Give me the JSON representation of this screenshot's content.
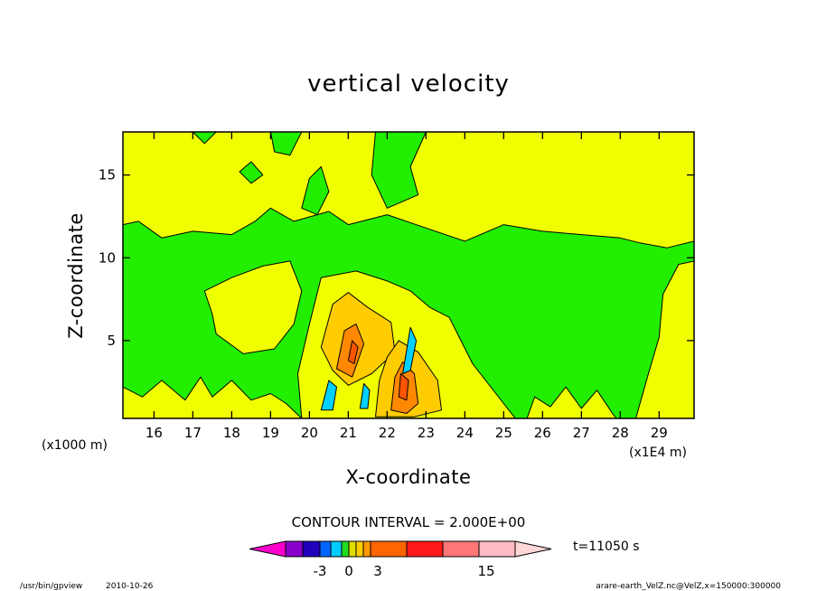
{
  "footer": {
    "program": "/usr/bin/gpview",
    "date": "2010-10-26",
    "source": "arare-earth_VelZ.nc@VelZ,x=150000:300000"
  },
  "colorbar": {
    "interval_label": "CONTOUR INTERVAL = 2.000E+00",
    "time_label": "t=11050 s",
    "tick_labels": [
      "-3",
      "0",
      "3",
      "15"
    ],
    "colors": [
      "#ff00cc",
      "#8800cc",
      "#2200bb",
      "#0066ff",
      "#00ccff",
      "#22dd22",
      "#dddd00",
      "#ffcc00",
      "#ff9900",
      "#ff6600",
      "#ff1a1a",
      "#ff7777",
      "#ffbbc5",
      "#ffd7d7"
    ]
  },
  "chart_data": {
    "type": "contour",
    "title": "vertical velocity",
    "xlabel": "X-coordinate",
    "ylabel": "Z-coordinate",
    "x_unit_label": "(x1E4 m)",
    "y_unit_label": "(x1000 m)",
    "xlim": [
      15.2,
      29.9
    ],
    "ylim": [
      0.3,
      17.6
    ],
    "x_ticks": [
      16,
      17,
      18,
      19,
      20,
      21,
      22,
      23,
      24,
      25,
      26,
      27,
      28,
      29
    ],
    "y_ticks": [
      5,
      10,
      15
    ],
    "contour_interval": 2.0,
    "time_s": 11050,
    "fill_colors": {
      "background": "#f0ff00",
      "green": "#22ee00",
      "yellow": "#f0ff00",
      "gold": "#ffcc00",
      "orange": "#ff8800",
      "cyan": "#00d0ff",
      "deep_orange": "#ff5500"
    },
    "regions": [
      {
        "color": "green",
        "points": [
          [
            15.2,
            0.3
          ],
          [
            15.2,
            12.0
          ],
          [
            15.6,
            12.2
          ],
          [
            16.2,
            11.2
          ],
          [
            17.0,
            11.6
          ],
          [
            18.0,
            11.4
          ],
          [
            18.6,
            12.2
          ],
          [
            19.0,
            13.0
          ],
          [
            19.6,
            12.2
          ],
          [
            20.5,
            12.8
          ],
          [
            21.0,
            12.0
          ],
          [
            22.0,
            12.6
          ],
          [
            23.0,
            11.8
          ],
          [
            24.0,
            11.0
          ],
          [
            25.0,
            12.0
          ],
          [
            26.0,
            11.6
          ],
          [
            27.0,
            11.4
          ],
          [
            28.0,
            11.2
          ],
          [
            28.5,
            10.9
          ],
          [
            29.2,
            10.6
          ],
          [
            29.9,
            11.0
          ],
          [
            29.9,
            0.3
          ]
        ]
      },
      {
        "color": "green",
        "points": [
          [
            19.8,
            13.0
          ],
          [
            20.2,
            12.6
          ],
          [
            20.5,
            14.0
          ],
          [
            20.3,
            15.5
          ],
          [
            20.0,
            14.8
          ]
        ]
      },
      {
        "color": "green",
        "points": [
          [
            21.7,
            17.6
          ],
          [
            21.6,
            15.0
          ],
          [
            22.0,
            13.0
          ],
          [
            22.8,
            13.8
          ],
          [
            22.6,
            15.5
          ],
          [
            23.0,
            17.6
          ]
        ]
      },
      {
        "color": "green",
        "points": [
          [
            19.0,
            17.6
          ],
          [
            19.1,
            16.4
          ],
          [
            19.5,
            16.2
          ],
          [
            19.8,
            17.6
          ]
        ]
      },
      {
        "color": "green",
        "points": [
          [
            18.2,
            15.2
          ],
          [
            18.5,
            14.5
          ],
          [
            18.8,
            15.0
          ],
          [
            18.5,
            15.8
          ]
        ]
      },
      {
        "color": "green",
        "points": [
          [
            17.0,
            17.6
          ],
          [
            17.3,
            16.9
          ],
          [
            17.6,
            17.6
          ]
        ]
      },
      {
        "color": "yellow",
        "points": [
          [
            15.2,
            0.3
          ],
          [
            15.2,
            2.2
          ],
          [
            15.7,
            1.6
          ],
          [
            16.2,
            2.6
          ],
          [
            16.8,
            1.4
          ],
          [
            17.2,
            2.8
          ],
          [
            17.5,
            1.6
          ],
          [
            18.0,
            2.6
          ],
          [
            18.5,
            1.4
          ],
          [
            19.0,
            1.8
          ],
          [
            19.4,
            1.2
          ],
          [
            19.8,
            0.3
          ]
        ]
      },
      {
        "color": "yellow",
        "points": [
          [
            17.3,
            8.0
          ],
          [
            18.0,
            8.8
          ],
          [
            18.8,
            9.5
          ],
          [
            19.5,
            9.8
          ],
          [
            19.8,
            8.0
          ],
          [
            19.6,
            6.0
          ],
          [
            19.1,
            4.5
          ],
          [
            18.3,
            4.2
          ],
          [
            17.6,
            5.4
          ],
          [
            17.5,
            6.6
          ]
        ]
      },
      {
        "color": "yellow",
        "points": [
          [
            19.8,
            0.3
          ],
          [
            19.7,
            3.0
          ],
          [
            20.0,
            6.0
          ],
          [
            20.3,
            8.8
          ],
          [
            21.2,
            9.2
          ],
          [
            22.0,
            8.6
          ],
          [
            22.6,
            8.0
          ],
          [
            23.1,
            7.0
          ],
          [
            23.6,
            6.4
          ],
          [
            24.2,
            3.6
          ],
          [
            24.8,
            1.8
          ],
          [
            25.3,
            0.3
          ]
        ]
      },
      {
        "color": "yellow",
        "points": [
          [
            25.6,
            0.3
          ],
          [
            25.8,
            1.6
          ],
          [
            26.2,
            1.0
          ],
          [
            26.6,
            2.2
          ],
          [
            27.0,
            0.9
          ],
          [
            27.4,
            2.0
          ],
          [
            27.8,
            0.6
          ],
          [
            27.9,
            0.3
          ]
        ]
      },
      {
        "color": "yellow",
        "points": [
          [
            28.4,
            0.3
          ],
          [
            28.7,
            2.8
          ],
          [
            29.0,
            5.2
          ],
          [
            29.1,
            7.8
          ],
          [
            29.5,
            9.6
          ],
          [
            29.9,
            9.8
          ],
          [
            29.9,
            0.3
          ]
        ]
      },
      {
        "color": "gold",
        "points": [
          [
            20.3,
            4.6
          ],
          [
            20.6,
            7.2
          ],
          [
            21.0,
            7.9
          ],
          [
            21.5,
            7.0
          ],
          [
            22.1,
            6.1
          ],
          [
            22.2,
            4.3
          ],
          [
            21.6,
            3.0
          ],
          [
            21.0,
            2.3
          ],
          [
            20.6,
            3.2
          ]
        ]
      },
      {
        "color": "gold",
        "points": [
          [
            21.7,
            0.4
          ],
          [
            21.8,
            2.6
          ],
          [
            22.0,
            4.0
          ],
          [
            22.3,
            5.0
          ],
          [
            22.8,
            4.3
          ],
          [
            23.3,
            2.6
          ],
          [
            23.4,
            0.8
          ],
          [
            22.7,
            0.4
          ]
        ]
      },
      {
        "color": "orange",
        "points": [
          [
            20.7,
            3.3
          ],
          [
            20.9,
            5.6
          ],
          [
            21.2,
            6.0
          ],
          [
            21.4,
            4.8
          ],
          [
            21.1,
            2.8
          ]
        ]
      },
      {
        "color": "orange",
        "points": [
          [
            22.1,
            0.8
          ],
          [
            22.2,
            2.8
          ],
          [
            22.4,
            3.7
          ],
          [
            22.7,
            3.0
          ],
          [
            22.8,
            1.2
          ],
          [
            22.5,
            0.6
          ]
        ]
      },
      {
        "color": "deep_orange",
        "points": [
          [
            21.0,
            3.8
          ],
          [
            21.1,
            5.0
          ],
          [
            21.25,
            4.6
          ],
          [
            21.15,
            3.6
          ]
        ]
      },
      {
        "color": "deep_orange",
        "points": [
          [
            22.3,
            1.6
          ],
          [
            22.35,
            3.0
          ],
          [
            22.55,
            2.6
          ],
          [
            22.5,
            1.4
          ]
        ]
      },
      {
        "color": "cyan",
        "points": [
          [
            20.3,
            0.8
          ],
          [
            20.5,
            2.6
          ],
          [
            20.7,
            2.2
          ],
          [
            20.6,
            0.8
          ]
        ]
      },
      {
        "color": "cyan",
        "points": [
          [
            21.3,
            0.9
          ],
          [
            21.4,
            2.4
          ],
          [
            21.55,
            2.0
          ],
          [
            21.5,
            0.9
          ]
        ]
      },
      {
        "color": "cyan",
        "points": [
          [
            22.4,
            3.0
          ],
          [
            22.6,
            5.8
          ],
          [
            22.75,
            5.0
          ],
          [
            22.6,
            3.2
          ]
        ]
      }
    ]
  }
}
